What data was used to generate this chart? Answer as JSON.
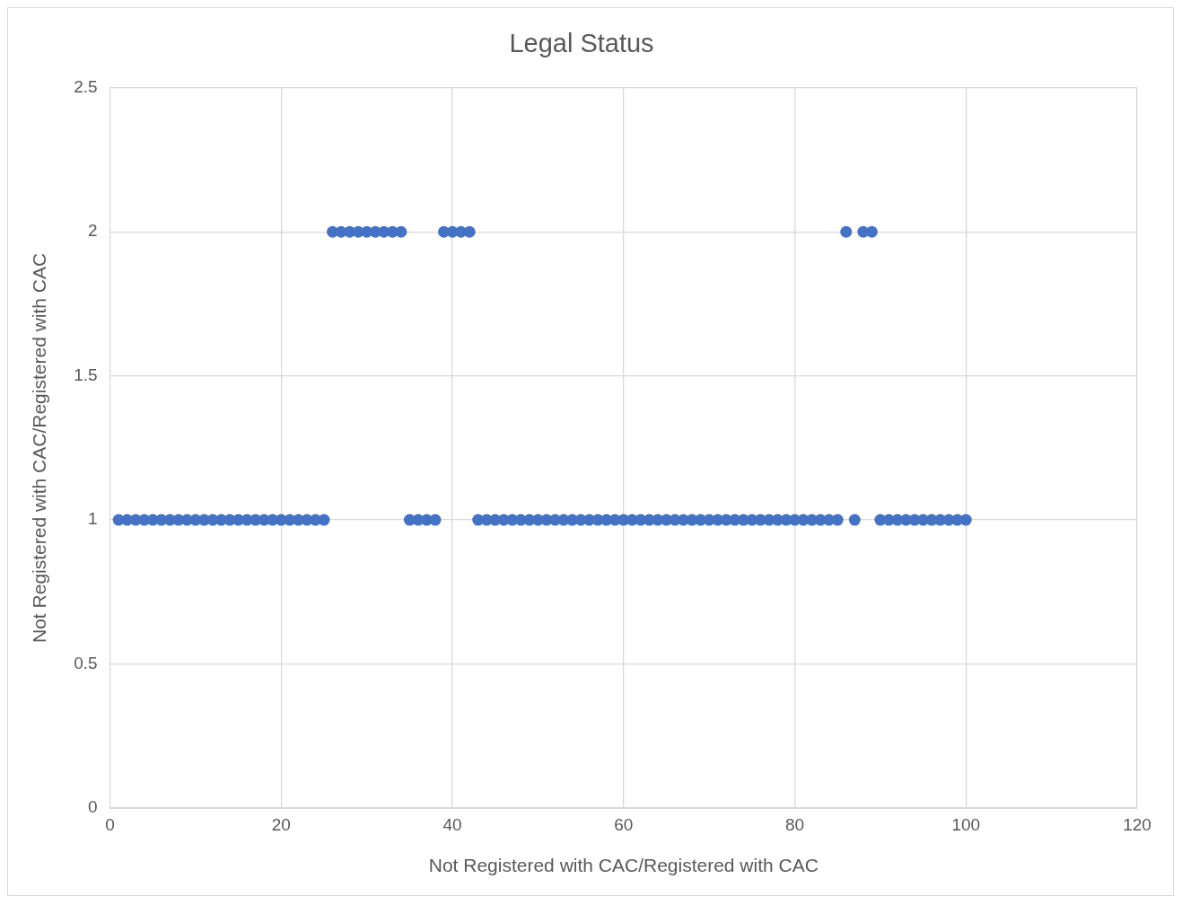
{
  "chart_data": {
    "type": "scatter",
    "title": "Legal Status",
    "xlabel": "Not Registered with CAC/Registered with CAC",
    "ylabel": "Not Registered with CAC/Registered with CAC",
    "x": [
      1,
      2,
      3,
      4,
      5,
      6,
      7,
      8,
      9,
      10,
      11,
      12,
      13,
      14,
      15,
      16,
      17,
      18,
      19,
      20,
      21,
      22,
      23,
      24,
      25,
      26,
      27,
      28,
      29,
      30,
      31,
      32,
      33,
      34,
      35,
      36,
      37,
      38,
      39,
      40,
      41,
      42,
      43,
      44,
      45,
      46,
      47,
      48,
      49,
      50,
      51,
      52,
      53,
      54,
      55,
      56,
      57,
      58,
      59,
      60,
      61,
      62,
      63,
      64,
      65,
      66,
      67,
      68,
      69,
      70,
      71,
      72,
      73,
      74,
      75,
      76,
      77,
      78,
      79,
      80,
      81,
      82,
      83,
      84,
      85,
      86,
      87,
      88,
      89,
      90,
      91,
      92,
      93,
      94,
      95,
      96,
      97,
      98,
      99,
      100
    ],
    "series": [
      {
        "color": "#4472c4",
        "values": [
          1,
          1,
          1,
          1,
          1,
          1,
          1,
          1,
          1,
          1,
          1,
          1,
          1,
          1,
          1,
          1,
          1,
          1,
          1,
          1,
          1,
          1,
          1,
          1,
          1,
          2,
          2,
          2,
          2,
          2,
          2,
          2,
          2,
          2,
          1,
          1,
          1,
          1,
          2,
          2,
          2,
          2,
          1,
          1,
          1,
          1,
          1,
          1,
          1,
          1,
          1,
          1,
          1,
          1,
          1,
          1,
          1,
          1,
          1,
          1,
          1,
          1,
          1,
          1,
          1,
          1,
          1,
          1,
          1,
          1,
          1,
          1,
          1,
          1,
          1,
          1,
          1,
          1,
          1,
          1,
          1,
          1,
          1,
          1,
          1,
          2,
          1,
          2,
          2,
          1,
          1,
          1,
          1,
          1,
          1,
          1,
          1,
          1,
          1,
          1
        ]
      }
    ],
    "xlim": [
      0,
      120
    ],
    "xticks": [
      0,
      20,
      40,
      60,
      80,
      100,
      120
    ],
    "ylim": [
      0,
      2.5
    ],
    "yticks": [
      0,
      0.5,
      1,
      1.5,
      2,
      2.5
    ],
    "grid": true,
    "marker": "circle",
    "legend": false
  }
}
